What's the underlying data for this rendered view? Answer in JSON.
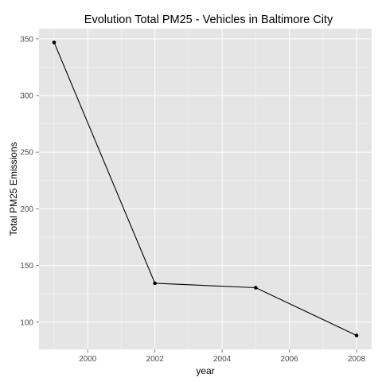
{
  "chart_data": {
    "type": "line",
    "title": "Evolution Total PM25 - Vehicles in Baltimore City",
    "xlabel": "year",
    "ylabel": "Total PM25 Emissions",
    "x": [
      1999,
      2002,
      2005,
      2008
    ],
    "values": [
      346.82,
      134.31,
      130.43,
      88.28
    ],
    "xlim": [
      1998.55,
      2008.45
    ],
    "ylim": [
      76,
      359
    ],
    "x_ticks": [
      2000,
      2002,
      2004,
      2006,
      2008
    ],
    "x_tick_labels": [
      "2000",
      "2002",
      "2004",
      "2006",
      "2008"
    ],
    "y_ticks": [
      100,
      150,
      200,
      250,
      300,
      350
    ],
    "y_tick_labels": [
      "100",
      "150",
      "200",
      "250",
      "300",
      "350"
    ],
    "grid": true,
    "panel_color": "#e5e5e5",
    "line_color": "#000000"
  }
}
